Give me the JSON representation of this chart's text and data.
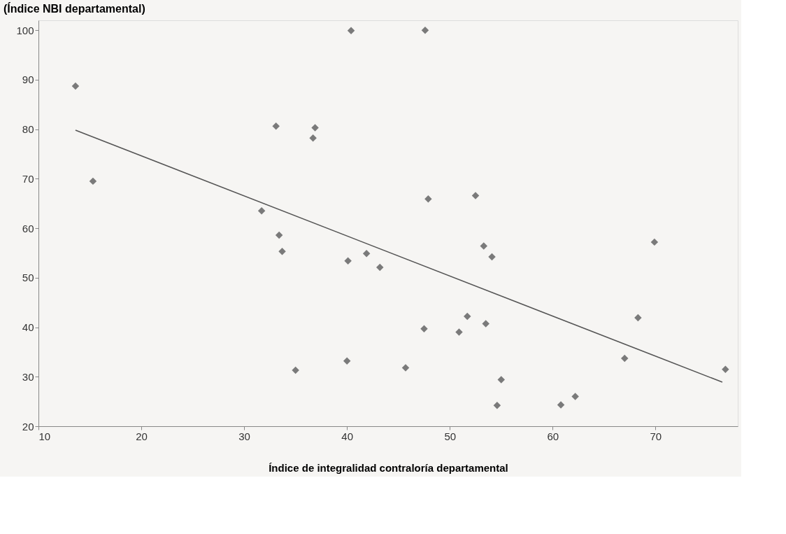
{
  "chart_data": {
    "type": "scatter",
    "title": "(Índice NBI departamental)",
    "xlabel": "Índice de integralidad contraloría departamental",
    "xlim": [
      10,
      78
    ],
    "ylim": [
      20,
      102
    ],
    "xticks": [
      10,
      20,
      30,
      40,
      50,
      60,
      70
    ],
    "yticks": [
      20,
      30,
      40,
      50,
      60,
      70,
      80,
      90,
      100
    ],
    "grid": false,
    "marker": "diamond",
    "series": [
      {
        "type": "scatter",
        "color": "#7a7a7a",
        "x": [
          13.6,
          15.3,
          33.1,
          36.9,
          36.7,
          40.4,
          47.6,
          31.7,
          33.4,
          33.7,
          40.1,
          35.0,
          40.0,
          41.9,
          47.9,
          52.5,
          43.2,
          53.3,
          54.1,
          69.9,
          51.7,
          53.5,
          47.5,
          50.9,
          68.3,
          67.0,
          45.7,
          76.8,
          55.0,
          54.6,
          60.8,
          62.2
        ],
        "values": [
          88.7,
          69.5,
          80.6,
          80.3,
          78.2,
          99.9,
          100,
          63.5,
          58.6,
          55.3,
          53.4,
          31.3,
          33.2,
          54.9,
          65.9,
          66.6,
          52.1,
          56.4,
          54.2,
          57.2,
          42.2,
          40.7,
          39.7,
          39.0,
          41.9,
          33.7,
          31.8,
          31.5,
          29.4,
          24.2,
          24.3,
          26.0
        ]
      },
      {
        "type": "line",
        "color": "#555555",
        "marker": "none",
        "line_style": "solid",
        "x": [
          13.6,
          76.5
        ],
        "values": [
          79.8,
          28.9
        ]
      }
    ]
  }
}
